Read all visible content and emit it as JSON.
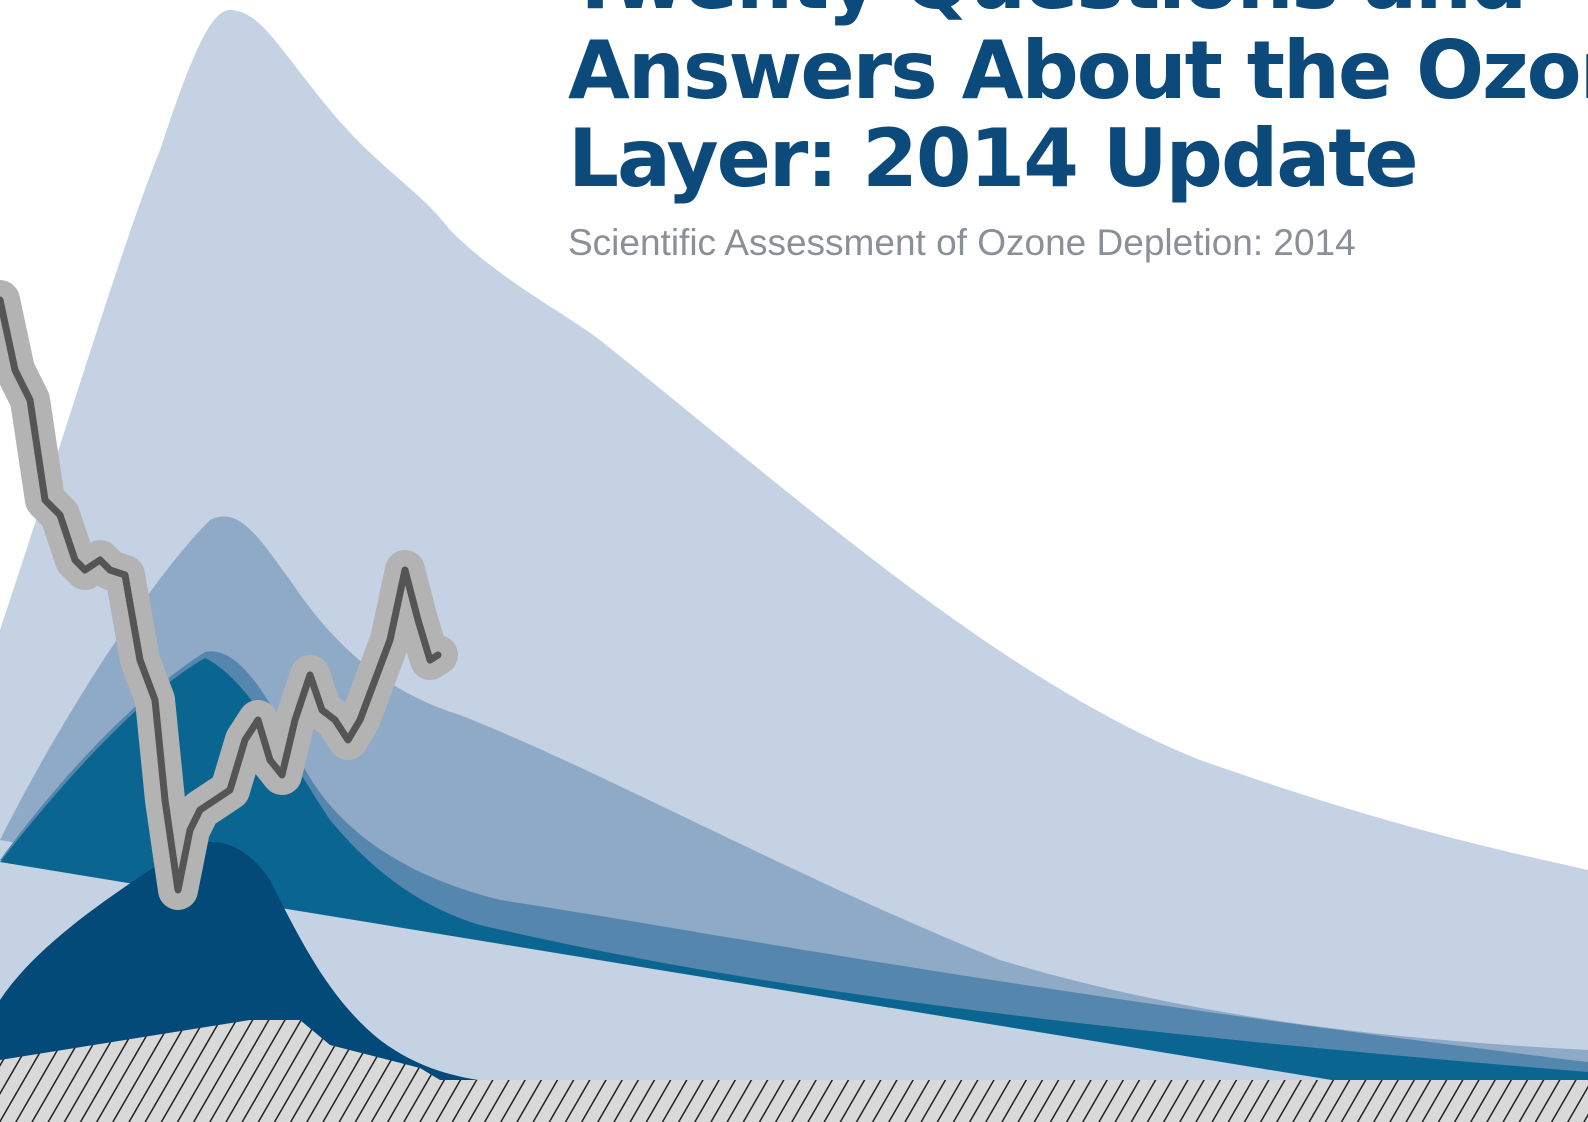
{
  "header": {
    "title_lines": [
      "Twenty Questions and",
      "Answers About the Ozone",
      "Layer: 2014 Update"
    ],
    "subtitle": "Scientific Assessment of Ozone Depletion: 2014"
  }
}
